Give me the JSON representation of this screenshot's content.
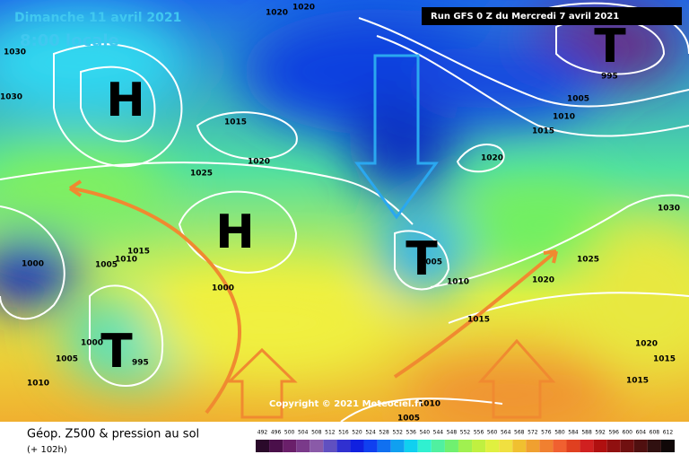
{
  "header": {
    "date": "Dimanche 11 avril 2021",
    "time": "8:00 locale",
    "run": "Run GFS 0 Z du Mercredi 7 avril 2021"
  },
  "footer": {
    "title": "Géop. Z500 & pression au sol",
    "lead": "(+ 102h)",
    "copyright": "Copyright © 2021 Meteociel.fr"
  },
  "pressure_centers": [
    "H",
    "H",
    "T",
    "T",
    "T"
  ],
  "isobar_labels": [
    "1030",
    "1030",
    "1015",
    "1020",
    "1025",
    "1015",
    "1010",
    "1005",
    "1000",
    "1000",
    "1005",
    "995",
    "1010",
    "1030",
    "1025",
    "1020",
    "1010",
    "1015",
    "1020",
    "1015",
    "1015",
    "1005",
    "1010",
    "1020",
    "1015",
    "1010",
    "1005",
    "995",
    "1020",
    "1020",
    "1000",
    "1005"
  ],
  "legend": {
    "labels": [
      "492",
      "496",
      "500",
      "504",
      "508",
      "512",
      "516",
      "520",
      "524",
      "528",
      "532",
      "536",
      "540",
      "544",
      "548",
      "552",
      "556",
      "560",
      "564",
      "568",
      "572",
      "576",
      "580",
      "584",
      "588",
      "592",
      "596",
      "600",
      "604",
      "608",
      "612"
    ],
    "colors": [
      "#2a0a2a",
      "#4a0f4a",
      "#6a1f6a",
      "#7a3a8a",
      "#8a5aa8",
      "#6050c0",
      "#3030d0",
      "#1020e0",
      "#1040f0",
      "#1070f0",
      "#10a0f0",
      "#10d0f0",
      "#30f0d0",
      "#50f0a0",
      "#70f070",
      "#a0f050",
      "#c0f040",
      "#e0f040",
      "#f0e040",
      "#f0c030",
      "#f0a030",
      "#f08030",
      "#f06030",
      "#e04020",
      "#d02020",
      "#b01010",
      "#901010",
      "#701010",
      "#501010",
      "#301010",
      "#100808"
    ]
  }
}
